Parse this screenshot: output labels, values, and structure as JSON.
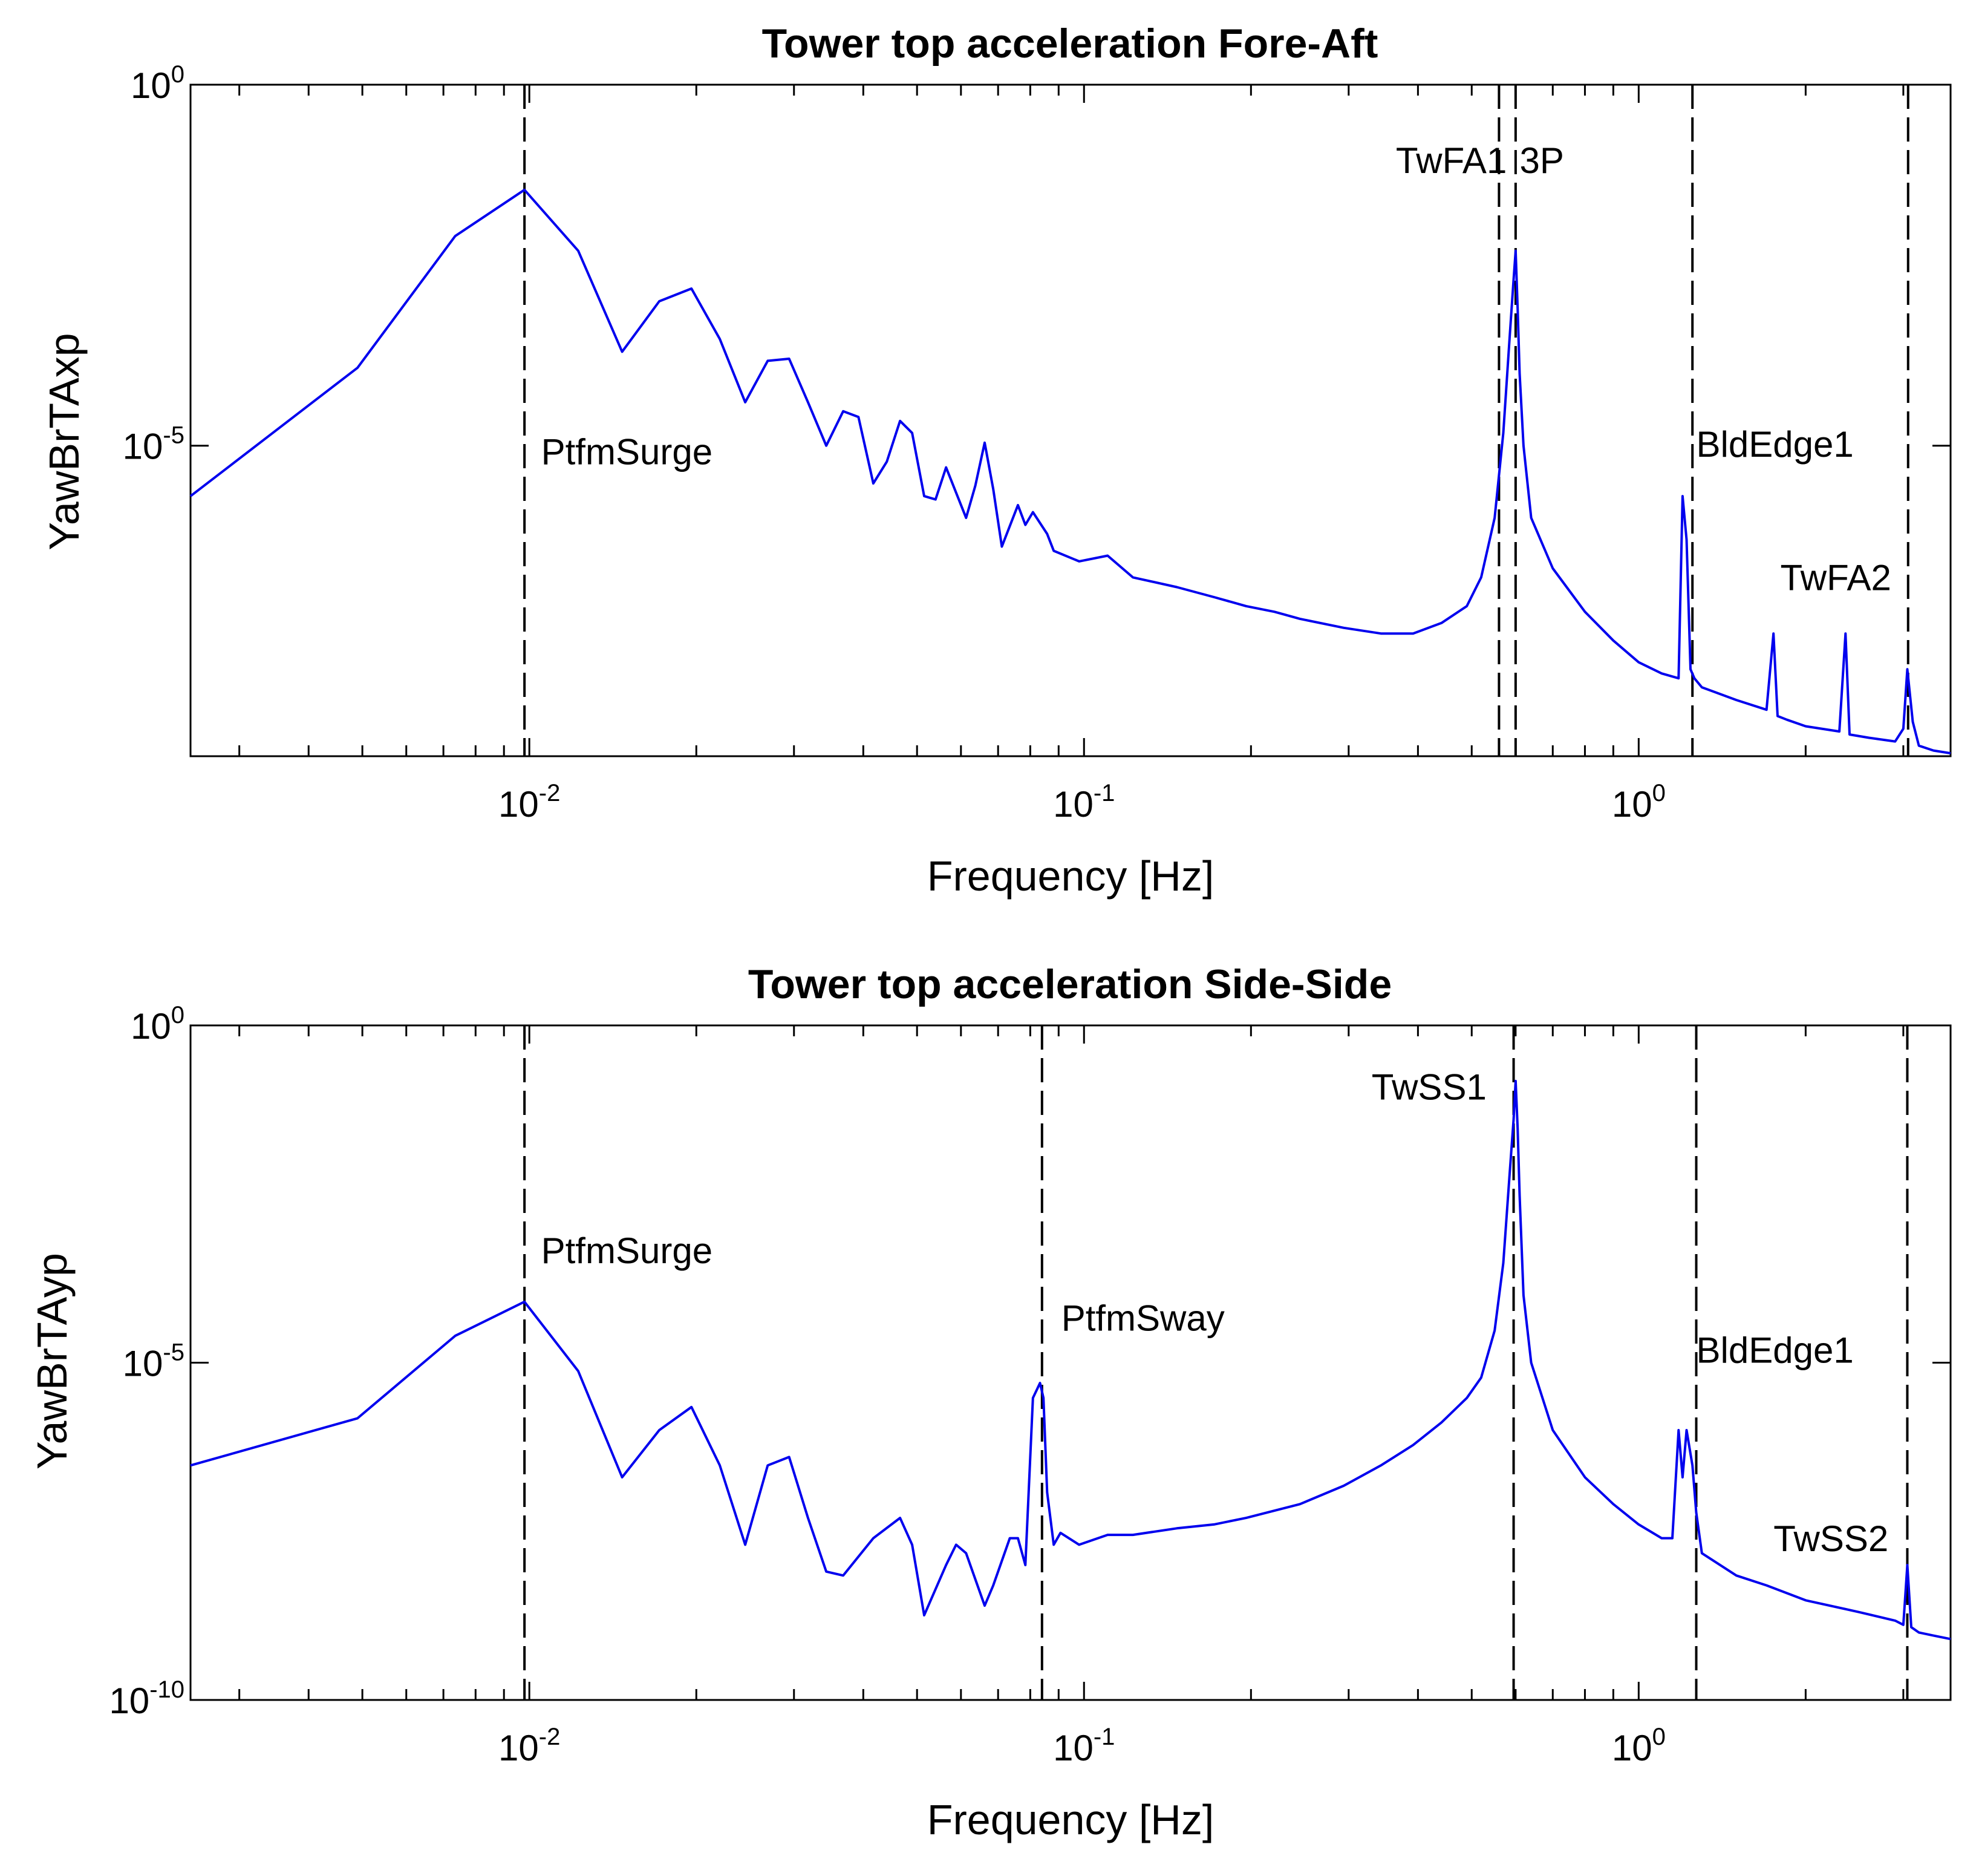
{
  "chart_data": [
    {
      "type": "line",
      "title": "Tower top acceleration Fore-Aft",
      "xlabel": "Frequency [Hz]",
      "ylabel": "YawBrTAxp",
      "xscale": "log",
      "yscale": "log",
      "xlim": [
        0.00245,
        3.65
      ],
      "ylim": [
        5e-10,
        1.0
      ],
      "xticks": [
        {
          "value": 0.01,
          "base": "10",
          "exp": "-2"
        },
        {
          "value": 0.1,
          "base": "10",
          "exp": "-1"
        },
        {
          "value": 1.0,
          "base": "10",
          "exp": "0"
        }
      ],
      "yticks": [
        {
          "value": 1.0,
          "base": "10",
          "exp": "0"
        },
        {
          "value": 1e-05,
          "base": "10",
          "exp": "-5"
        }
      ],
      "series": [
        {
          "name": "YawBrTAxp",
          "color": "#0000ee",
          "x": [
            0.00245,
            0.0049,
            0.00735,
            0.0098,
            0.01225,
            0.0147,
            0.01715,
            0.0196,
            0.02205,
            0.0245,
            0.0269,
            0.0294,
            0.0318,
            0.0343,
            0.0368,
            0.0392,
            0.0417,
            0.0441,
            0.0466,
            0.049,
            0.0515,
            0.054,
            0.0564,
            0.0613,
            0.0637,
            0.0662,
            0.0686,
            0.0711,
            0.076,
            0.0784,
            0.0809,
            0.0858,
            0.0882,
            0.098,
            0.1103,
            0.1225,
            0.147,
            0.1715,
            0.196,
            0.2205,
            0.245,
            0.294,
            0.343,
            0.392,
            0.441,
            0.49,
            0.52,
            0.55,
            0.57,
            0.585,
            0.595,
            0.6,
            0.605,
            0.61,
            0.62,
            0.64,
            0.7,
            0.8,
            0.9,
            1.0,
            1.1,
            1.18,
            1.2,
            1.22,
            1.24,
            1.26,
            1.3,
            1.5,
            1.7,
            1.75,
            1.78,
            1.85,
            2.0,
            2.3,
            2.36,
            2.4,
            2.6,
            2.9,
            3.0,
            3.05,
            3.12,
            3.2,
            3.4,
            3.65
          ],
          "y": [
            2e-06,
            0.00012,
            0.008,
            0.035,
            0.005,
            0.0002,
            0.001,
            0.0015,
            0.0003,
            4e-05,
            0.00015,
            0.00016,
            4e-05,
            1e-05,
            3e-05,
            2.5e-05,
            3e-06,
            6e-06,
            2.2e-05,
            1.5e-05,
            2e-06,
            1.8e-06,
            5e-06,
            1e-06,
            2.8e-06,
            1.1e-05,
            2.5e-06,
            4e-07,
            1.5e-06,
            8e-07,
            1.2e-06,
            6e-07,
            3.5e-07,
            2.5e-07,
            3e-07,
            1.5e-07,
            1.1e-07,
            8e-08,
            6e-08,
            5e-08,
            4e-08,
            3e-08,
            2.5e-08,
            2.5e-08,
            3.5e-08,
            6e-08,
            1.5e-07,
            1e-06,
            1.5e-05,
            0.0003,
            0.002,
            0.005,
            0.0008,
            0.0001,
            1e-05,
            1e-06,
            2e-07,
            5e-08,
            2e-08,
            1e-08,
            7e-09,
            6e-09,
            2e-06,
            5e-07,
            8e-09,
            6e-09,
            4.5e-09,
            3e-09,
            2.2e-09,
            2.5e-08,
            1.8e-09,
            1.6e-09,
            1.3e-09,
            1.1e-09,
            2.5e-08,
            1e-09,
            9e-10,
            8e-10,
            1.2e-09,
            8e-09,
            1.5e-09,
            7e-10,
            6e-10,
            5.5e-10
          ]
        }
      ],
      "vlines": [
        0.0098,
        0.56,
        0.6,
        1.25,
        3.06
      ],
      "annotations": [
        {
          "text": "PtfmSurge",
          "x": 0.0105,
          "y": 5.5e-06
        },
        {
          "text": "TwFA1",
          "x": 0.365,
          "y": 0.06
        },
        {
          "text": "3P",
          "x": 0.61,
          "y": 0.06
        },
        {
          "text": "BldEdge1",
          "x": 1.27,
          "y": 7e-06
        },
        {
          "text": "TwFA2",
          "x": 1.8,
          "y": 1e-07
        }
      ]
    },
    {
      "type": "line",
      "title": "Tower top acceleration Side-Side",
      "xlabel": "Frequency [Hz]",
      "ylabel": "YawBrTAyp",
      "xscale": "log",
      "yscale": "log",
      "xlim": [
        0.00245,
        3.65
      ],
      "ylim": [
        1e-10,
        1.0
      ],
      "xticks": [
        {
          "value": 0.01,
          "base": "10",
          "exp": "-2"
        },
        {
          "value": 0.1,
          "base": "10",
          "exp": "-1"
        },
        {
          "value": 1.0,
          "base": "10",
          "exp": "0"
        }
      ],
      "yticks": [
        {
          "value": 1.0,
          "base": "10",
          "exp": "0"
        },
        {
          "value": 1e-05,
          "base": "10",
          "exp": "-5"
        },
        {
          "value": 1e-10,
          "base": "10",
          "exp": "-10"
        }
      ],
      "series": [
        {
          "name": "YawBrTAyp",
          "color": "#0000ee",
          "x": [
            0.00245,
            0.0049,
            0.00735,
            0.0098,
            0.01225,
            0.0147,
            0.01715,
            0.0196,
            0.02205,
            0.0245,
            0.0269,
            0.0294,
            0.0318,
            0.0343,
            0.0368,
            0.0417,
            0.0466,
            0.049,
            0.0515,
            0.0564,
            0.0588,
            0.0613,
            0.0662,
            0.0686,
            0.0735,
            0.076,
            0.0784,
            0.0809,
            0.0833,
            0.0845,
            0.0858,
            0.0882,
            0.0907,
            0.098,
            0.1103,
            0.1225,
            0.147,
            0.1715,
            0.196,
            0.245,
            0.294,
            0.343,
            0.392,
            0.441,
            0.49,
            0.52,
            0.55,
            0.57,
            0.585,
            0.595,
            0.6,
            0.605,
            0.61,
            0.62,
            0.64,
            0.7,
            0.8,
            0.9,
            1.0,
            1.1,
            1.15,
            1.18,
            1.2,
            1.22,
            1.25,
            1.27,
            1.3,
            1.5,
            1.7,
            2.0,
            2.5,
            2.9,
            3.0,
            3.05,
            3.1,
            3.2,
            3.4,
            3.65
          ],
          "y": [
            3e-07,
            1.5e-06,
            2.5e-05,
            8e-05,
            7.5e-06,
            2e-07,
            1e-06,
            2.2e-06,
            3e-07,
            2e-08,
            3e-07,
            4e-07,
            5e-08,
            8e-09,
            7e-09,
            2.5e-08,
            5e-08,
            2e-08,
            1.8e-09,
            1e-08,
            2e-08,
            1.5e-08,
            2.5e-09,
            5e-09,
            2.5e-08,
            2.5e-08,
            1e-08,
            3e-06,
            5e-06,
            3e-06,
            1.2e-07,
            2e-08,
            3e-08,
            2e-08,
            2.8e-08,
            2.8e-08,
            3.5e-08,
            4e-08,
            5e-08,
            8e-08,
            1.5e-07,
            3e-07,
            6e-07,
            1.3e-06,
            3e-06,
            6e-06,
            3e-05,
            0.0003,
            0.006,
            0.04,
            0.15,
            0.03,
            0.003,
            0.0001,
            1e-05,
            1e-06,
            2e-07,
            8e-08,
            4e-08,
            2.5e-08,
            2.5e-08,
            1e-06,
            2e-07,
            1e-06,
            3e-07,
            6e-08,
            1.5e-08,
            7e-09,
            5e-09,
            3e-09,
            2e-09,
            1.5e-09,
            1.3e-09,
            1e-08,
            1.2e-09,
            1e-09,
            9e-10,
            8e-10
          ]
        }
      ],
      "vlines": [
        0.0098,
        0.084,
        0.595,
        1.27,
        3.05
      ],
      "annotations": [
        {
          "text": "PtfmSurge",
          "x": 0.0105,
          "y": 0.0003
        },
        {
          "text": "PtfmSway",
          "x": 0.091,
          "y": 3e-05
        },
        {
          "text": "TwSS1",
          "x": 0.33,
          "y": 0.08
        },
        {
          "text": "BldEdge1",
          "x": 1.27,
          "y": 1e-05
        },
        {
          "text": "TwSS2",
          "x": 1.75,
          "y": 1.6e-08
        }
      ]
    }
  ],
  "colors": {
    "series": "#0000ee",
    "vline": "#000000",
    "axes": "#000000"
  }
}
